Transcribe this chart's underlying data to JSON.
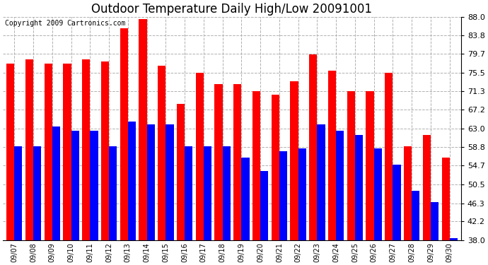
{
  "title": "Outdoor Temperature Daily High/Low 20091001",
  "copyright": "Copyright 2009 Cartronics.com",
  "dates": [
    "09/07",
    "09/08",
    "09/09",
    "09/10",
    "09/11",
    "09/12",
    "09/13",
    "09/14",
    "09/15",
    "09/16",
    "09/17",
    "09/18",
    "09/19",
    "09/20",
    "09/21",
    "09/22",
    "09/23",
    "09/24",
    "09/25",
    "09/26",
    "09/27",
    "09/28",
    "09/29",
    "09/30"
  ],
  "highs": [
    77.5,
    78.5,
    77.5,
    77.5,
    78.5,
    78.0,
    85.5,
    87.5,
    77.0,
    68.5,
    75.5,
    73.0,
    73.0,
    71.3,
    70.5,
    73.5,
    79.5,
    76.0,
    71.3,
    71.3,
    75.5,
    59.0,
    61.5,
    56.5
  ],
  "lows": [
    59.0,
    59.0,
    63.5,
    62.5,
    62.5,
    59.0,
    64.5,
    64.0,
    64.0,
    59.0,
    59.0,
    59.0,
    56.5,
    53.5,
    58.0,
    58.5,
    64.0,
    62.5,
    61.5,
    58.5,
    55.0,
    49.0,
    46.5,
    38.5
  ],
  "high_color": "#ff0000",
  "low_color": "#0000ff",
  "background_color": "#ffffff",
  "plot_bg_color": "#ffffff",
  "grid_color": "#b0b0b0",
  "ylim": [
    38.0,
    88.0
  ],
  "yticks": [
    38.0,
    42.2,
    46.3,
    50.5,
    54.7,
    58.8,
    63.0,
    67.2,
    71.3,
    75.5,
    79.7,
    83.8,
    88.0
  ],
  "title_fontsize": 12,
  "copyright_fontsize": 7,
  "bar_width": 0.42,
  "figwidth": 6.9,
  "figheight": 3.75,
  "dpi": 100
}
